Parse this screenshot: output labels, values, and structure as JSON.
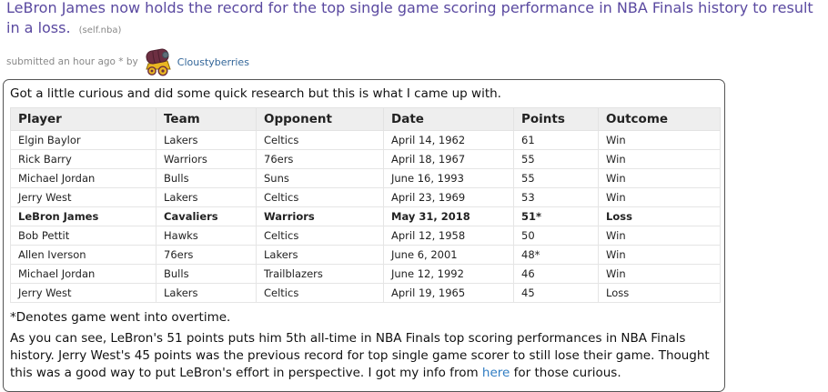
{
  "post": {
    "title": "LeBron James now holds the record for the top single game scoring performance in NBA Finals history to result in a loss.",
    "domain": "(self.nba)",
    "tagline": "submitted an hour ago * by",
    "author": "Cloustyberries",
    "avatar_icon": "covered-wagon-snoomoji"
  },
  "body": {
    "intro": "Got a little curious and did some quick research but this is what I came up with.",
    "footnote": "*Denotes game went into overtime.",
    "outro_before_link": "As you can see, LeBron's 51 points puts him 5th all-time in NBA Finals top scoring performances in NBA Finals history. Jerry West's 45 points was the previous record for top single game scorer to still lose their game. Thought this was a good way to put LeBron's effort in perspective. I got my info from ",
    "link_text": "here",
    "outro_after_link": " for those curious."
  },
  "table": {
    "headers": [
      "Player",
      "Team",
      "Opponent",
      "Date",
      "Points",
      "Outcome"
    ],
    "rows": [
      {
        "cells": [
          "Elgin Baylor",
          "Lakers",
          "Celtics",
          "April 14, 1962",
          "61",
          "Win"
        ],
        "bold": false
      },
      {
        "cells": [
          "Rick Barry",
          "Warriors",
          "76ers",
          "April 18, 1967",
          "55",
          "Win"
        ],
        "bold": false
      },
      {
        "cells": [
          "Michael Jordan",
          "Bulls",
          "Suns",
          "June 16, 1993",
          "55",
          "Win"
        ],
        "bold": false
      },
      {
        "cells": [
          "Jerry West",
          "Lakers",
          "Celtics",
          "April 23, 1969",
          "53",
          "Win"
        ],
        "bold": false
      },
      {
        "cells": [
          "LeBron James",
          "Cavaliers",
          "Warriors",
          "May 31, 2018",
          "51*",
          "Loss"
        ],
        "bold": true
      },
      {
        "cells": [
          "Bob Pettit",
          "Hawks",
          "Celtics",
          "April 12, 1958",
          "50",
          "Win"
        ],
        "bold": false
      },
      {
        "cells": [
          "Allen Iverson",
          "76ers",
          "Lakers",
          "June 6, 2001",
          "48*",
          "Win"
        ],
        "bold": false
      },
      {
        "cells": [
          "Michael Jordan",
          "Bulls",
          "Trailblazers",
          "June 12, 1992",
          "46",
          "Win"
        ],
        "bold": false
      },
      {
        "cells": [
          "Jerry West",
          "Lakers",
          "Celtics",
          "April 19, 1965",
          "45",
          "Loss"
        ],
        "bold": false
      }
    ]
  },
  "colors": {
    "title_visited_purple": "#5a49a0",
    "author_blue": "#336699",
    "body_link_blue": "#2f7cc2",
    "muted_gray": "#888888",
    "table_header_bg": "#eeeeee",
    "box_border": "#555555"
  }
}
